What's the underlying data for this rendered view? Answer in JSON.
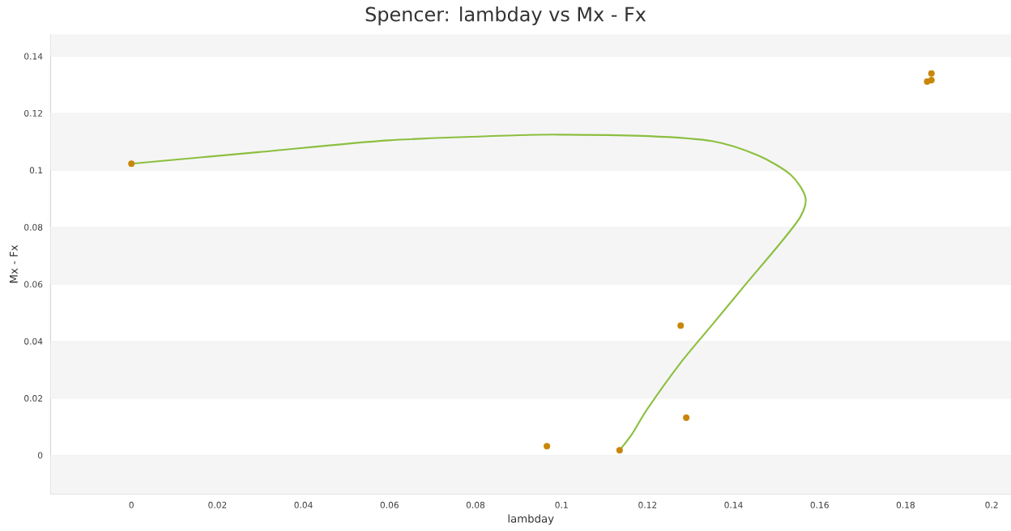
{
  "chart_data": {
    "type": "scatter",
    "title": "Spencer: lambday vs Mx - Fx",
    "xlabel": "lambday",
    "ylabel": "Mx - Fx",
    "xlim": [
      -0.0188,
      0.2045
    ],
    "ylim": [
      -0.0136,
      0.1477
    ],
    "xticks": [
      0,
      0.02,
      0.04,
      0.06,
      0.08,
      0.1,
      0.12,
      0.14,
      0.16,
      0.18,
      0.2
    ],
    "yticks": [
      0,
      0.02,
      0.04,
      0.06,
      0.08,
      0.1,
      0.12,
      0.14
    ],
    "grid": "y",
    "series": [
      {
        "type": "line",
        "color": "#8cbf3f",
        "line_style": "solid",
        "marker": "none",
        "x": [
          0,
          0.0297,
          0.0598,
          0.09,
          0.1005,
          0.1201,
          0.1352,
          0.1457,
          0.1533,
          0.1567,
          0.1555,
          0.1503,
          0.1427,
          0.1352,
          0.1277,
          0.1201,
          0.1164,
          0.1135
        ],
        "values": [
          0.1023,
          0.1064,
          0.1105,
          0.1123,
          0.1125,
          0.112,
          0.1102,
          0.1052,
          0.0984,
          0.0905,
          0.0836,
          0.0734,
          0.0598,
          0.0461,
          0.0325,
          0.0166,
          0.0075,
          0.0018
        ]
      },
      {
        "color": "#c8860a",
        "marker": "circle",
        "x": [
          0,
          0.0966,
          0.1135,
          0.1277,
          0.129,
          0.185,
          0.186,
          0.186
        ],
        "values": [
          0.1023,
          0.0032,
          0.0018,
          0.0455,
          0.0132,
          0.1311,
          0.134,
          0.1316
        ]
      }
    ]
  }
}
